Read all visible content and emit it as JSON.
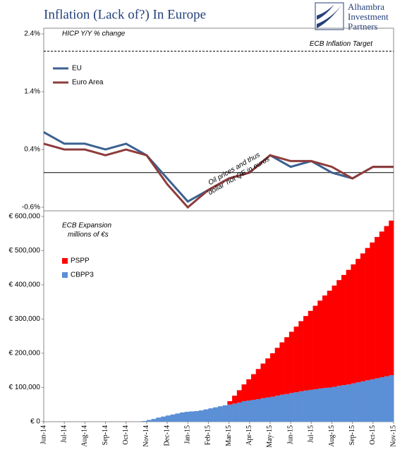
{
  "title": "Inflation (Lack of?) In Europe",
  "logo": [
    "Alhambra",
    "Investment",
    "Partners"
  ],
  "chart_data": [
    {
      "type": "line",
      "subtitle": "HICP Y/Y % change",
      "categories": [
        "Jun-14",
        "Jul-14",
        "Aug-14",
        "Sep-14",
        "Oct-14",
        "Nov-14",
        "Dec-14",
        "Jan-15",
        "Feb-15",
        "Mar-15",
        "Apr-15",
        "May-15",
        "Jun-15",
        "Jul-15",
        "Aug-15",
        "Sep-15",
        "Oct-15",
        "Nov-15"
      ],
      "series": [
        {
          "name": "EU",
          "color": "#3b6190",
          "values": [
            0.7,
            0.5,
            0.5,
            0.4,
            0.5,
            0.3,
            -0.1,
            -0.5,
            -0.3,
            -0.1,
            0.0,
            0.3,
            0.1,
            0.2,
            0.0,
            -0.1,
            0.1,
            0.1
          ]
        },
        {
          "name": "Euro Area",
          "color": "#8e3b3b",
          "values": [
            0.5,
            0.4,
            0.4,
            0.3,
            0.4,
            0.3,
            -0.2,
            -0.6,
            -0.3,
            -0.1,
            0.0,
            0.3,
            0.2,
            0.2,
            0.1,
            -0.1,
            0.1,
            0.1
          ]
        }
      ],
      "ylim": [
        -0.6,
        2.4
      ],
      "yticks": [
        {
          "value": -0.6,
          "label": "-0.6%"
        },
        {
          "value": 0.4,
          "label": "0.4%"
        },
        {
          "value": 1.4,
          "label": "1.4%"
        },
        {
          "value": 2.4,
          "label": "2.4%"
        }
      ],
      "target": {
        "value": 2.1,
        "label": "ECB Inflation Target"
      },
      "annotation": [
        "Oil prices and thus",
        "'dollar' not QE in euros"
      ]
    },
    {
      "type": "stacked_bar",
      "subtitle": [
        "ECB Expansion",
        "millions of €s"
      ],
      "series": [
        {
          "name": "CBPP3",
          "color": "#5b8fd6",
          "values": [
            2000,
            5000,
            8000,
            12000,
            15000,
            18000,
            21000,
            24000,
            27000,
            29000,
            30000,
            31000,
            33000,
            36000,
            39000,
            42000,
            45000,
            48000,
            50000,
            53000,
            56000,
            60000,
            62000,
            64000,
            66000,
            69000,
            71000,
            73000,
            76000,
            79000,
            81000,
            84000,
            86000,
            89000,
            91000,
            93000,
            95000,
            97000,
            99000,
            100000,
            102000,
            105000,
            107000,
            109000,
            112000,
            115000,
            118000,
            121000,
            124000,
            127000,
            130000,
            133000,
            136000
          ]
        },
        {
          "name": "PSPP",
          "color": "#ff0000",
          "values": [
            0,
            0,
            0,
            0,
            0,
            0,
            0,
            0,
            0,
            0,
            0,
            0,
            0,
            0,
            0,
            0,
            0,
            0,
            10000,
            23000,
            36000,
            49000,
            62000,
            75000,
            88000,
            101000,
            114000,
            127000,
            140000,
            153000,
            166000,
            179000,
            192000,
            205000,
            218000,
            231000,
            244000,
            257000,
            270000,
            283000,
            296000,
            309000,
            322000,
            335000,
            348000,
            361000,
            374000,
            387000,
            400000,
            413000,
            426000,
            439000,
            452000
          ]
        }
      ],
      "ylim": [
        0,
        600000
      ],
      "yticks": [
        {
          "value": 0,
          "label": "€ 0"
        },
        {
          "value": 100000,
          "label": "€ 100,000"
        },
        {
          "value": 200000,
          "label": "€ 200,000"
        },
        {
          "value": 300000,
          "label": "€ 300,000"
        },
        {
          "value": 400000,
          "label": "€ 400,000"
        },
        {
          "value": 500000,
          "label": "€ 500,000"
        },
        {
          "value": 600000,
          "label": "€ 600,000"
        }
      ]
    }
  ]
}
